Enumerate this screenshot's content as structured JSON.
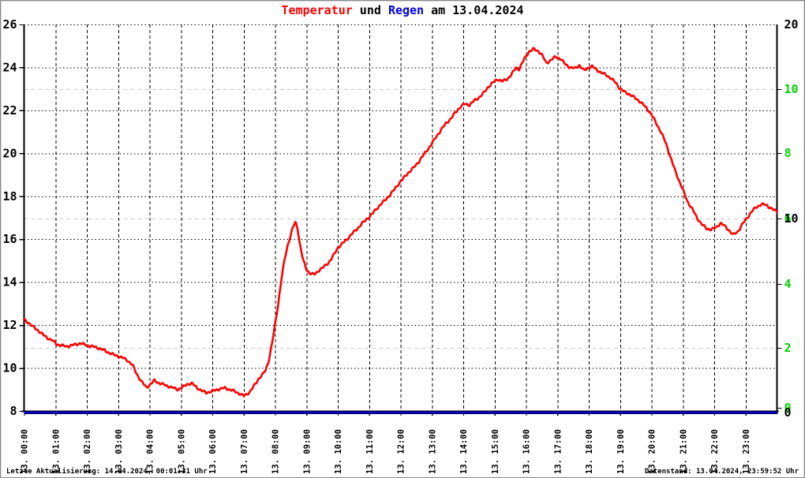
{
  "title": {
    "full": "Temperatur und Regen am 13.04.2024",
    "segments": [
      {
        "text": "Temperatur",
        "color": "#ff0000"
      },
      {
        "text": " und ",
        "color": "#000000"
      },
      {
        "text": "Regen",
        "color": "#0000dd"
      },
      {
        "text": " am 13.04.2024",
        "color": "#000000"
      }
    ]
  },
  "footer": {
    "left": "Letzte Aktualisierung: 14.04.2024, 00:01:31 Uhr",
    "right": "Datenstand: 13.04.2024, 23:59:52 Uhr"
  },
  "colors": {
    "temperature": "#ff0000",
    "rain": "#0000bb",
    "right_axis_green": "#00d400",
    "grid_black": "#000000",
    "grid_gray": "#c9c9c9",
    "axis": "#000000"
  },
  "axes": {
    "left_ticks": [
      26,
      24,
      22,
      20,
      18,
      16,
      14,
      12,
      10,
      8
    ],
    "right_black_ticks": [
      20,
      10,
      0
    ],
    "right_green_ticks": [
      10,
      8,
      6,
      4,
      2,
      0
    ],
    "gray_guide_green_values": [
      10,
      6,
      2
    ],
    "x_labels": [
      "13. 00:00",
      "13. 01:00",
      "13. 02:00",
      "13. 03:00",
      "13. 04:00",
      "13. 05:00",
      "13. 06:00",
      "13. 07:00",
      "13. 08:00",
      "13. 09:00",
      "13. 10:00",
      "13. 11:00",
      "13. 12:00",
      "13. 13:00",
      "13. 14:00",
      "13. 15:00",
      "13. 16:00",
      "13. 17:00",
      "13. 18:00",
      "13. 19:00",
      "13. 20:00",
      "13. 21:00",
      "13. 22:00",
      "13. 23:00"
    ]
  },
  "chart_data": {
    "type": "line",
    "title": "Temperatur und Regen am 13.04.2024",
    "x_range_hours": [
      0,
      24
    ],
    "left_ylim": [
      8,
      26
    ],
    "right_black_ylim": [
      0,
      20
    ],
    "right_green_ylim": [
      0,
      12
    ],
    "grid": "on",
    "series": [
      {
        "name": "Temperatur",
        "axis": "left",
        "color": "#ff0000",
        "points": [
          [
            0.0,
            12.25
          ],
          [
            0.15,
            12.1
          ],
          [
            0.3,
            11.9
          ],
          [
            0.45,
            11.75
          ],
          [
            0.6,
            11.55
          ],
          [
            0.75,
            11.4
          ],
          [
            0.9,
            11.28
          ],
          [
            1.05,
            11.1
          ],
          [
            1.2,
            11.05
          ],
          [
            1.35,
            11.0
          ],
          [
            1.5,
            11.05
          ],
          [
            1.65,
            11.1
          ],
          [
            1.8,
            11.15
          ],
          [
            1.95,
            11.08
          ],
          [
            2.1,
            11.02
          ],
          [
            2.25,
            10.98
          ],
          [
            2.4,
            10.92
          ],
          [
            2.55,
            10.82
          ],
          [
            2.7,
            10.72
          ],
          [
            2.85,
            10.62
          ],
          [
            3.0,
            10.55
          ],
          [
            3.15,
            10.47
          ],
          [
            3.3,
            10.35
          ],
          [
            3.45,
            10.15
          ],
          [
            3.6,
            9.7
          ],
          [
            3.75,
            9.35
          ],
          [
            3.9,
            9.1
          ],
          [
            4.0,
            9.2
          ],
          [
            4.15,
            9.42
          ],
          [
            4.3,
            9.3
          ],
          [
            4.5,
            9.2
          ],
          [
            4.7,
            9.1
          ],
          [
            4.9,
            9.0
          ],
          [
            5.05,
            9.1
          ],
          [
            5.2,
            9.25
          ],
          [
            5.35,
            9.28
          ],
          [
            5.5,
            9.1
          ],
          [
            5.65,
            8.95
          ],
          [
            5.8,
            8.85
          ],
          [
            5.95,
            8.9
          ],
          [
            6.1,
            8.97
          ],
          [
            6.25,
            9.03
          ],
          [
            6.4,
            9.07
          ],
          [
            6.55,
            9.0
          ],
          [
            6.7,
            8.92
          ],
          [
            6.85,
            8.82
          ],
          [
            7.0,
            8.7
          ],
          [
            7.1,
            8.78
          ],
          [
            7.2,
            8.9
          ],
          [
            7.3,
            9.1
          ],
          [
            7.4,
            9.32
          ],
          [
            7.5,
            9.55
          ],
          [
            7.6,
            9.68
          ],
          [
            7.7,
            9.9
          ],
          [
            7.8,
            10.35
          ],
          [
            7.9,
            11.1
          ],
          [
            8.0,
            12.0
          ],
          [
            8.1,
            13.0
          ],
          [
            8.2,
            14.1
          ],
          [
            8.3,
            15.0
          ],
          [
            8.4,
            15.7
          ],
          [
            8.5,
            16.2
          ],
          [
            8.57,
            16.55
          ],
          [
            8.65,
            16.8
          ],
          [
            8.72,
            16.5
          ],
          [
            8.8,
            15.7
          ],
          [
            8.9,
            15.0
          ],
          [
            9.0,
            14.6
          ],
          [
            9.1,
            14.42
          ],
          [
            9.25,
            14.35
          ],
          [
            9.4,
            14.55
          ],
          [
            9.55,
            14.7
          ],
          [
            9.7,
            14.9
          ],
          [
            9.85,
            15.2
          ],
          [
            10.0,
            15.6
          ],
          [
            10.15,
            15.8
          ],
          [
            10.3,
            16.0
          ],
          [
            10.45,
            16.25
          ],
          [
            10.6,
            16.45
          ],
          [
            10.75,
            16.7
          ],
          [
            10.9,
            16.9
          ],
          [
            11.05,
            17.1
          ],
          [
            11.2,
            17.35
          ],
          [
            11.35,
            17.6
          ],
          [
            11.5,
            17.8
          ],
          [
            11.65,
            18.05
          ],
          [
            11.8,
            18.3
          ],
          [
            11.95,
            18.6
          ],
          [
            12.1,
            18.85
          ],
          [
            12.25,
            19.1
          ],
          [
            12.4,
            19.3
          ],
          [
            12.55,
            19.55
          ],
          [
            12.7,
            19.85
          ],
          [
            12.85,
            20.15
          ],
          [
            13.0,
            20.45
          ],
          [
            13.15,
            20.8
          ],
          [
            13.3,
            21.1
          ],
          [
            13.45,
            21.4
          ],
          [
            13.6,
            21.6
          ],
          [
            13.75,
            21.9
          ],
          [
            13.9,
            22.15
          ],
          [
            14.05,
            22.3
          ],
          [
            14.2,
            22.25
          ],
          [
            14.35,
            22.45
          ],
          [
            14.5,
            22.6
          ],
          [
            14.65,
            22.8
          ],
          [
            14.8,
            23.1
          ],
          [
            14.95,
            23.3
          ],
          [
            15.1,
            23.45
          ],
          [
            15.25,
            23.35
          ],
          [
            15.4,
            23.45
          ],
          [
            15.55,
            23.7
          ],
          [
            15.68,
            23.98
          ],
          [
            15.78,
            23.92
          ],
          [
            15.95,
            24.4
          ],
          [
            16.1,
            24.75
          ],
          [
            16.25,
            24.85
          ],
          [
            16.4,
            24.75
          ],
          [
            16.5,
            24.6
          ],
          [
            16.65,
            24.2
          ],
          [
            16.8,
            24.35
          ],
          [
            16.95,
            24.5
          ],
          [
            17.1,
            24.4
          ],
          [
            17.25,
            24.15
          ],
          [
            17.4,
            24.0
          ],
          [
            17.55,
            23.95
          ],
          [
            17.7,
            24.1
          ],
          [
            17.85,
            23.85
          ],
          [
            18.0,
            24.0
          ],
          [
            18.1,
            24.05
          ],
          [
            18.25,
            23.9
          ],
          [
            18.4,
            23.75
          ],
          [
            18.55,
            23.65
          ],
          [
            18.7,
            23.5
          ],
          [
            18.85,
            23.3
          ],
          [
            19.0,
            23.0
          ],
          [
            19.15,
            22.85
          ],
          [
            19.3,
            22.75
          ],
          [
            19.45,
            22.6
          ],
          [
            19.6,
            22.45
          ],
          [
            19.75,
            22.25
          ],
          [
            19.9,
            22.0
          ],
          [
            20.0,
            21.8
          ],
          [
            20.15,
            21.4
          ],
          [
            20.3,
            21.0
          ],
          [
            20.45,
            20.5
          ],
          [
            20.6,
            19.85
          ],
          [
            20.75,
            19.2
          ],
          [
            20.9,
            18.65
          ],
          [
            21.0,
            18.3
          ],
          [
            21.15,
            17.75
          ],
          [
            21.3,
            17.4
          ],
          [
            21.45,
            17.0
          ],
          [
            21.6,
            16.7
          ],
          [
            21.75,
            16.5
          ],
          [
            21.9,
            16.45
          ],
          [
            22.0,
            16.5
          ],
          [
            22.1,
            16.6
          ],
          [
            22.2,
            16.75
          ],
          [
            22.3,
            16.65
          ],
          [
            22.45,
            16.45
          ],
          [
            22.6,
            16.2
          ],
          [
            22.75,
            16.35
          ],
          [
            22.9,
            16.7
          ],
          [
            23.05,
            17.0
          ],
          [
            23.2,
            17.3
          ],
          [
            23.35,
            17.5
          ],
          [
            23.5,
            17.62
          ],
          [
            23.65,
            17.6
          ],
          [
            23.8,
            17.45
          ],
          [
            23.9,
            17.35
          ],
          [
            24.0,
            17.3
          ]
        ]
      },
      {
        "name": "Regen",
        "axis": "right",
        "color": "#0000bb",
        "points": [
          [
            0,
            0
          ],
          [
            24,
            0
          ]
        ]
      }
    ]
  }
}
